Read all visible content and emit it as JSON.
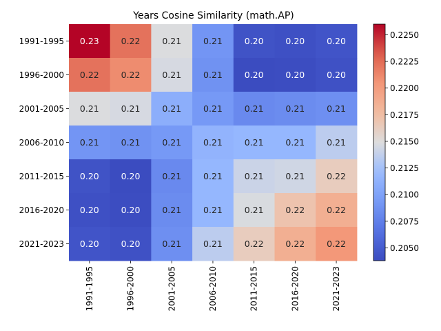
{
  "chart_data": {
    "type": "heatmap",
    "title": "Years Cosine Similarity (math.AP)",
    "xlabel": "",
    "ylabel": "",
    "x_categories": [
      "1991-1995",
      "1996-2000",
      "2001-2005",
      "2006-2010",
      "2011-2015",
      "2016-2020",
      "2021-2023"
    ],
    "y_categories": [
      "1991-1995",
      "1996-2000",
      "2001-2005",
      "2006-2010",
      "2011-2015",
      "2016-2020",
      "2021-2023"
    ],
    "values": [
      [
        0.226,
        0.2222,
        0.2148,
        0.209,
        0.2043,
        0.2041,
        0.2044
      ],
      [
        0.2222,
        0.221,
        0.2146,
        0.2088,
        0.2038,
        0.2039,
        0.2042
      ],
      [
        0.2148,
        0.2146,
        0.211,
        0.2093,
        0.2082,
        0.2084,
        0.2086
      ],
      [
        0.209,
        0.2088,
        0.2093,
        0.2114,
        0.2117,
        0.2117,
        0.2135
      ],
      [
        0.2043,
        0.2038,
        0.2082,
        0.2117,
        0.2141,
        0.2143,
        0.2163
      ],
      [
        0.2041,
        0.2039,
        0.2084,
        0.2117,
        0.2147,
        0.217,
        0.2186
      ],
      [
        0.2044,
        0.2042,
        0.2086,
        0.2135,
        0.2163,
        0.2186,
        0.2204
      ]
    ],
    "cell_labels": [
      [
        "0.23",
        "0.22",
        "0.21",
        "0.21",
        "0.20",
        "0.20",
        "0.20"
      ],
      [
        "0.22",
        "0.22",
        "0.21",
        "0.21",
        "0.20",
        "0.20",
        "0.20"
      ],
      [
        "0.21",
        "0.21",
        "0.21",
        "0.21",
        "0.21",
        "0.21",
        "0.21"
      ],
      [
        "0.21",
        "0.21",
        "0.21",
        "0.21",
        "0.21",
        "0.21",
        "0.21"
      ],
      [
        "0.20",
        "0.20",
        "0.21",
        "0.21",
        "0.21",
        "0.21",
        "0.22"
      ],
      [
        "0.20",
        "0.20",
        "0.21",
        "0.21",
        "0.21",
        "0.22",
        "0.22"
      ],
      [
        "0.20",
        "0.20",
        "0.21",
        "0.21",
        "0.22",
        "0.22",
        "0.22"
      ]
    ],
    "colormap": "coolwarm",
    "color_range": [
      0.2038,
      0.226
    ],
    "colorbar_ticks": [
      "0.2050",
      "0.2075",
      "0.2100",
      "0.2125",
      "0.2150",
      "0.2175",
      "0.2200",
      "0.2225",
      "0.2250"
    ],
    "colorbar_tick_values": [
      0.205,
      0.2075,
      0.21,
      0.2125,
      0.215,
      0.2175,
      0.22,
      0.2225,
      0.225
    ],
    "colorbar_position": "right",
    "grid": false,
    "annot_color_light": "#ffffff",
    "annot_color_dark": "#262626"
  }
}
